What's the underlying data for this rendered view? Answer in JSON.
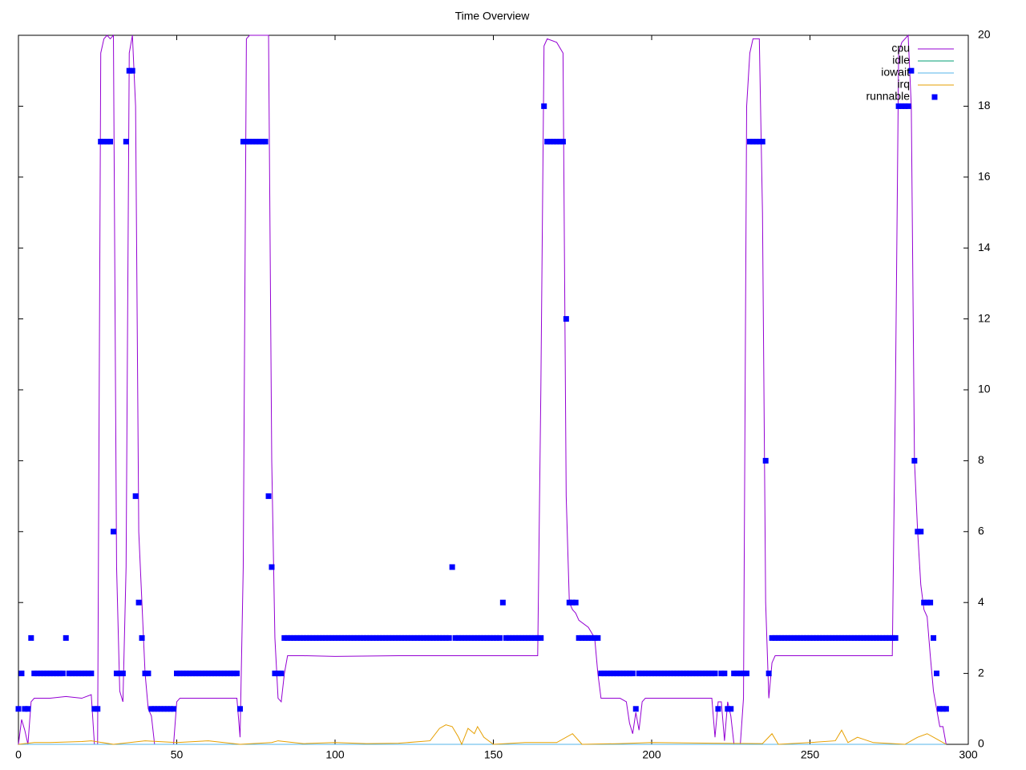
{
  "chart_data": {
    "type": "line",
    "title": "Time Overview",
    "xlim": [
      0,
      300
    ],
    "xticks": [
      0,
      50,
      100,
      150,
      200,
      250,
      300
    ],
    "ylim": [
      0,
      20
    ],
    "yticks": [
      0,
      2,
      4,
      6,
      8,
      10,
      12,
      14,
      16,
      18,
      20
    ],
    "legend": "top-right",
    "x": [
      0,
      1,
      2,
      3,
      4,
      5,
      6,
      7,
      8,
      9,
      10,
      11,
      12,
      13,
      14,
      15,
      16,
      17,
      18,
      19,
      20,
      21,
      22,
      23,
      24,
      25,
      26,
      27,
      28,
      29,
      30,
      31,
      32,
      33,
      34,
      35,
      36,
      37,
      38,
      39,
      40,
      41,
      42,
      43,
      44,
      45,
      46,
      47,
      48,
      49,
      50,
      51,
      52,
      53,
      54,
      55,
      56,
      57,
      58,
      59,
      60,
      61,
      62,
      63,
      64,
      65,
      66,
      67,
      68,
      69,
      70,
      71,
      72,
      73,
      74,
      75,
      76,
      77,
      78,
      79,
      80,
      81,
      82,
      83,
      84,
      85,
      86,
      87,
      88,
      89,
      90,
      91,
      92,
      93,
      94,
      95,
      96,
      97,
      98,
      99,
      100,
      101,
      102,
      103,
      104,
      105,
      106,
      107,
      108,
      109,
      110,
      111,
      112,
      113,
      114,
      115,
      116,
      117,
      118,
      119,
      120,
      121,
      122,
      123,
      124,
      125,
      126,
      127,
      128,
      129,
      130,
      131,
      132,
      133,
      134,
      135,
      136,
      137,
      138,
      139,
      140,
      141,
      142,
      143,
      144,
      145,
      146,
      147,
      148,
      149,
      150,
      151,
      152,
      153,
      154,
      155,
      156,
      157,
      158,
      159,
      160,
      161,
      162,
      163,
      164,
      165,
      166,
      167,
      168,
      169,
      170,
      171,
      172,
      173,
      174,
      175,
      176,
      177,
      178,
      179,
      180,
      181,
      182,
      183,
      184,
      185,
      186,
      187,
      188,
      189,
      190,
      191,
      192,
      193,
      194,
      195,
      196,
      197,
      198,
      199,
      200,
      201,
      202,
      203,
      204,
      205,
      206,
      207,
      208,
      209,
      210,
      211,
      212,
      213,
      214,
      215,
      216,
      217,
      218,
      219,
      220,
      221,
      222,
      223,
      224,
      225,
      226,
      227,
      228,
      229,
      230,
      231,
      232,
      233,
      234,
      235,
      236,
      237,
      238,
      239,
      240,
      241,
      242,
      243,
      244,
      245,
      246,
      247,
      248,
      249,
      250,
      251,
      252,
      253,
      254,
      255,
      256,
      257,
      258,
      259,
      260,
      261,
      262,
      263,
      264,
      265,
      266,
      267,
      268,
      269,
      270,
      271,
      272,
      273,
      274,
      275,
      276,
      277,
      278,
      279,
      280,
      281,
      282,
      283,
      284,
      285,
      286,
      287,
      288,
      289,
      290,
      291,
      292,
      293
    ],
    "series": [
      {
        "name": "cpu",
        "color": "#9400d3",
        "mode": "lines",
        "x": [
          0,
          1,
          2,
          3,
          4,
          5,
          10,
          15,
          20,
          23,
          24,
          25,
          26,
          27,
          28,
          29,
          30,
          31,
          32,
          33,
          34,
          35,
          36,
          37,
          38,
          39,
          40,
          41,
          42,
          43,
          49,
          50,
          51,
          60,
          65,
          69,
          70,
          71,
          72,
          73,
          79,
          80,
          81,
          82,
          83,
          84,
          85,
          90,
          100,
          120,
          140,
          164,
          165,
          166,
          167,
          170,
          172,
          173,
          174,
          175,
          176,
          177,
          180,
          182,
          183,
          184,
          190,
          192,
          193,
          194,
          195,
          196,
          197,
          198,
          205,
          210,
          219,
          220,
          221,
          222,
          223,
          224,
          225,
          226,
          228,
          229,
          230,
          231,
          232,
          234,
          235,
          236,
          237,
          238,
          239,
          250,
          260,
          270,
          276,
          277,
          278,
          279,
          281,
          282,
          283,
          284,
          285,
          286,
          287,
          288,
          289,
          290,
          291,
          292,
          293
        ],
        "values": [
          0,
          0.7,
          0.4,
          0,
          1.2,
          1.3,
          1.3,
          1.35,
          1.3,
          1.4,
          0,
          0,
          19.5,
          19.9,
          20,
          19.9,
          20,
          5,
          1.5,
          1.2,
          5,
          19.5,
          20,
          18,
          6,
          4,
          2,
          1,
          0.8,
          0,
          0,
          1.2,
          1.3,
          1.3,
          1.3,
          1.3,
          0.2,
          5,
          19.9,
          20,
          20,
          8,
          3,
          1.3,
          1.2,
          2,
          2.5,
          2.5,
          2.48,
          2.5,
          2.5,
          2.5,
          10,
          19.7,
          19.9,
          19.8,
          19.5,
          7,
          4,
          3.8,
          3.7,
          3.5,
          3.3,
          3,
          2,
          1.3,
          1.3,
          1.2,
          0.6,
          0.3,
          0.9,
          0.4,
          1.2,
          1.3,
          1.3,
          1.3,
          1.3,
          0.2,
          1.2,
          1.2,
          0.1,
          1.2,
          0.8,
          0,
          0,
          1.3,
          18,
          19.5,
          19.9,
          19.9,
          15,
          4,
          1.3,
          2.3,
          2.5,
          2.5,
          2.5,
          2.5,
          2.5,
          10,
          19.5,
          19.8,
          20,
          18,
          8,
          6,
          4.5,
          3.8,
          3.6,
          2.5,
          1.5,
          1,
          0.5,
          0.5,
          0
        ]
      },
      {
        "name": "idle",
        "color": "#009e73",
        "mode": "lines",
        "x": [
          0,
          293
        ],
        "values": [
          0,
          0
        ]
      },
      {
        "name": "iowait",
        "color": "#56b4e9",
        "mode": "lines",
        "x": [
          0,
          293
        ],
        "values": [
          0,
          0
        ]
      },
      {
        "name": "irq",
        "color": "#e69f00",
        "mode": "lines",
        "x": [
          0,
          5,
          10,
          20,
          23,
          30,
          40,
          50,
          60,
          70,
          80,
          82,
          90,
          100,
          110,
          120,
          130,
          133,
          135,
          137,
          139,
          140,
          142,
          144,
          145,
          147,
          150,
          160,
          170,
          175,
          178,
          190,
          200,
          220,
          235,
          238,
          240,
          250,
          258,
          260,
          262,
          265,
          270,
          280,
          284,
          287,
          290,
          293
        ],
        "values": [
          0,
          0.05,
          0.05,
          0.08,
          0.1,
          0,
          0.1,
          0.05,
          0.1,
          0,
          0.05,
          0.1,
          0.02,
          0.05,
          0.02,
          0.03,
          0.1,
          0.45,
          0.55,
          0.5,
          0.2,
          0,
          0.45,
          0.3,
          0.5,
          0.2,
          0,
          0.05,
          0.05,
          0.3,
          0,
          0.02,
          0.05,
          0.03,
          0.02,
          0.3,
          0,
          0.05,
          0.1,
          0.4,
          0.05,
          0.2,
          0.05,
          0,
          0.2,
          0.3,
          0.15,
          0
        ]
      },
      {
        "name": "runnable",
        "color": "#0000ff",
        "mode": "points",
        "values": [
          1,
          2,
          1,
          1,
          3,
          2,
          2,
          2,
          2,
          2,
          2,
          2,
          2,
          2,
          2,
          3,
          2,
          2,
          2,
          2,
          2,
          2,
          2,
          2,
          1,
          1,
          17,
          17,
          17,
          17,
          6,
          2,
          2,
          2,
          17,
          19,
          19,
          7,
          4,
          3,
          2,
          2,
          1,
          1,
          1,
          1,
          1,
          1,
          1,
          1,
          2,
          2,
          2,
          2,
          2,
          2,
          2,
          2,
          2,
          2,
          2,
          2,
          2,
          2,
          2,
          2,
          2,
          2,
          2,
          2,
          1,
          17,
          17,
          17,
          17,
          17,
          17,
          17,
          17,
          7,
          5,
          2,
          2,
          2,
          3,
          3,
          3,
          3,
          3,
          3,
          3,
          3,
          3,
          3,
          3,
          3,
          3,
          3,
          3,
          3,
          3,
          3,
          3,
          3,
          3,
          3,
          3,
          3,
          3,
          3,
          3,
          3,
          3,
          3,
          3,
          3,
          3,
          3,
          3,
          3,
          3,
          3,
          3,
          3,
          3,
          3,
          3,
          3,
          3,
          3,
          3,
          3,
          3,
          3,
          3,
          3,
          3,
          5,
          3,
          3,
          3,
          3,
          3,
          3,
          3,
          3,
          3,
          3,
          3,
          3,
          3,
          3,
          3,
          4,
          3,
          3,
          3,
          3,
          3,
          3,
          3,
          3,
          3,
          3,
          3,
          3,
          18,
          17,
          17,
          17,
          17,
          17,
          17,
          12,
          4,
          4,
          4,
          3,
          3,
          3,
          3,
          3,
          3,
          3,
          2,
          2,
          2,
          2,
          2,
          2,
          2,
          2,
          2,
          2,
          2,
          1,
          2,
          2,
          2,
          2,
          2,
          2,
          2,
          2,
          2,
          2,
          2,
          2,
          2,
          2,
          2,
          2,
          2,
          2,
          2,
          2,
          2,
          2,
          2,
          2,
          2,
          1,
          2,
          2,
          1,
          1,
          2,
          2,
          2,
          2,
          2,
          17,
          17,
          17,
          17,
          17,
          8,
          2,
          3,
          3,
          3,
          3,
          3,
          3,
          3,
          3,
          3,
          3,
          3,
          3,
          3,
          3,
          3,
          3,
          3,
          3,
          3,
          3,
          3,
          3,
          3,
          3,
          3,
          3,
          3,
          3,
          3,
          3,
          3,
          3,
          3,
          3,
          3,
          3,
          3,
          3,
          3,
          3,
          18,
          18,
          18,
          18,
          19,
          8,
          6,
          6,
          4,
          4,
          4,
          3,
          2,
          1,
          1,
          1
        ]
      }
    ]
  }
}
